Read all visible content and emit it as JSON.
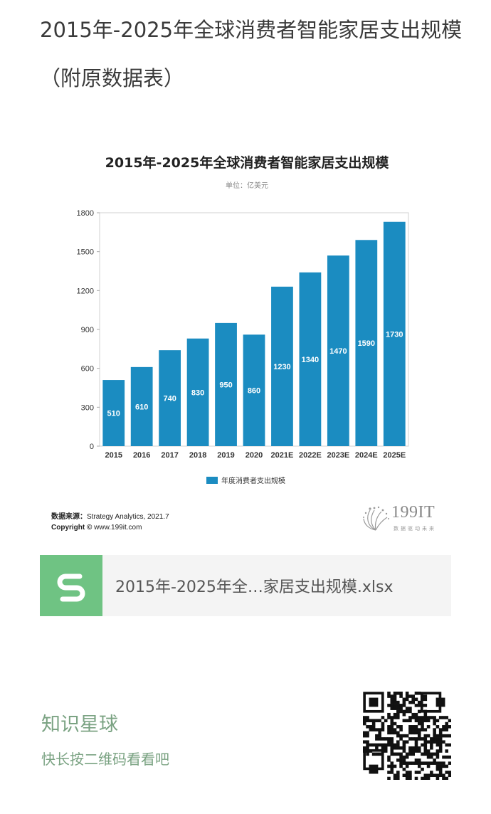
{
  "post": {
    "title": "2015年-2025年全球消费者智能家居支出规模（附原数据表）"
  },
  "chart_data": {
    "type": "bar",
    "title": "2015年-2025年全球消费者智能家居支出规模",
    "subtitle": "单位：亿美元",
    "categories": [
      "2015",
      "2016",
      "2017",
      "2018",
      "2019",
      "2020",
      "2021E",
      "2022E",
      "2023E",
      "2024E",
      "2025E"
    ],
    "series": [
      {
        "name": "年度消费者支出规模",
        "values": [
          510,
          610,
          740,
          830,
          950,
          860,
          1230,
          1340,
          1470,
          1590,
          1730
        ]
      }
    ],
    "y_ticks": [
      0,
      300,
      600,
      900,
      1200,
      1500,
      1800
    ],
    "ylim": [
      0,
      1800
    ],
    "grid": false,
    "legend": "bottom-center",
    "bar_color": "#1b8cc1"
  },
  "source": {
    "label": "数据来源：",
    "text": "Strategy Analytics, 2021.7"
  },
  "copyright": {
    "label": "Copyright ©",
    "text": "www.199it.com"
  },
  "brand": {
    "name": "199IT",
    "tagline": "数据驱动未来"
  },
  "attachment": {
    "file_name": "2015年-2025年全…家居支出规模.xlsx",
    "icon": "spreadsheet-s-icon",
    "icon_color": "#6fc383"
  },
  "footer": {
    "planet_name": "知识星球",
    "scan_tip": "快长按二维码看看吧",
    "qr_icon": "qr-code-icon"
  }
}
